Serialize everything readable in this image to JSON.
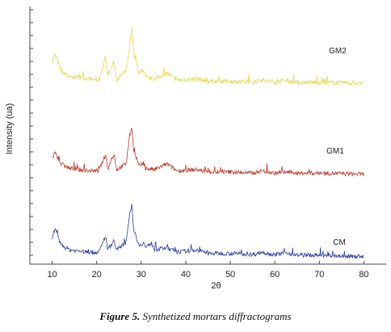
{
  "caption": {
    "figure_number": "Figure 5.",
    "text": " Synthetized mortars diffractograms"
  },
  "colors": {
    "GM2": "#e6d84a",
    "GM1": "#c0392b",
    "CM": "#2c3e9f"
  },
  "chart_data": {
    "type": "line",
    "xlabel": "2θ",
    "ylabel": "Intensity (ua)",
    "xlim": [
      5,
      85
    ],
    "x_ticks": [
      10,
      20,
      30,
      40,
      50,
      60,
      70,
      80
    ],
    "y_ticks_shown": false,
    "grid": false,
    "series": [
      {
        "name": "GM2",
        "baseline": 0.74,
        "x": [
          10.0,
          10.6,
          12,
          14,
          16,
          18,
          20.5,
          22.0,
          22.5,
          23.9,
          24.5,
          26.6,
          27.4,
          27.9,
          28.3,
          29.5,
          30.5,
          31,
          33,
          35.8,
          38,
          42.5,
          45,
          50,
          55,
          57,
          60,
          62.5,
          65,
          70,
          75,
          80
        ],
        "y": [
          0.84,
          0.87,
          0.8,
          0.77,
          0.775,
          0.765,
          0.76,
          0.86,
          0.78,
          0.84,
          0.76,
          0.8,
          0.9,
          0.99,
          0.88,
          0.79,
          0.8,
          0.77,
          0.765,
          0.79,
          0.76,
          0.765,
          0.755,
          0.755,
          0.75,
          0.76,
          0.75,
          0.757,
          0.75,
          0.75,
          0.748,
          0.745
        ]
      },
      {
        "name": "GM1",
        "baseline": 0.36,
        "x": [
          10.0,
          10.6,
          12,
          14,
          16,
          18,
          20.5,
          22.0,
          22.5,
          23.9,
          24.5,
          26.6,
          27.4,
          27.9,
          28.3,
          29.5,
          30.5,
          31,
          33,
          35.8,
          38,
          42.5,
          45,
          50,
          55,
          57,
          60,
          62.5,
          65,
          70,
          75,
          80
        ],
        "y": [
          0.42,
          0.45,
          0.4,
          0.38,
          0.375,
          0.37,
          0.37,
          0.44,
          0.38,
          0.44,
          0.375,
          0.4,
          0.52,
          0.56,
          0.46,
          0.39,
          0.4,
          0.38,
          0.375,
          0.4,
          0.37,
          0.375,
          0.365,
          0.365,
          0.36,
          0.37,
          0.36,
          0.365,
          0.36,
          0.36,
          0.358,
          0.355
        ]
      },
      {
        "name": "CM",
        "baseline": 0.0,
        "x": [
          10.0,
          10.6,
          12,
          14,
          16,
          18,
          20.5,
          22.0,
          22.5,
          23.9,
          24.5,
          26.6,
          27.4,
          27.9,
          28.3,
          29.5,
          30.5,
          31,
          32.4,
          33,
          35.8,
          38,
          42.5,
          45,
          50,
          55,
          57,
          60,
          62.5,
          65,
          70,
          75,
          80
        ],
        "y": [
          0.08,
          0.12,
          0.05,
          0.03,
          0.025,
          0.02,
          0.02,
          0.09,
          0.03,
          0.07,
          0.03,
          0.06,
          0.19,
          0.22,
          0.12,
          0.05,
          0.06,
          0.04,
          0.06,
          0.03,
          0.04,
          0.02,
          0.03,
          0.015,
          0.015,
          0.01,
          0.02,
          0.01,
          0.018,
          0.008,
          0.006,
          0.004,
          0.002
        ]
      }
    ]
  }
}
